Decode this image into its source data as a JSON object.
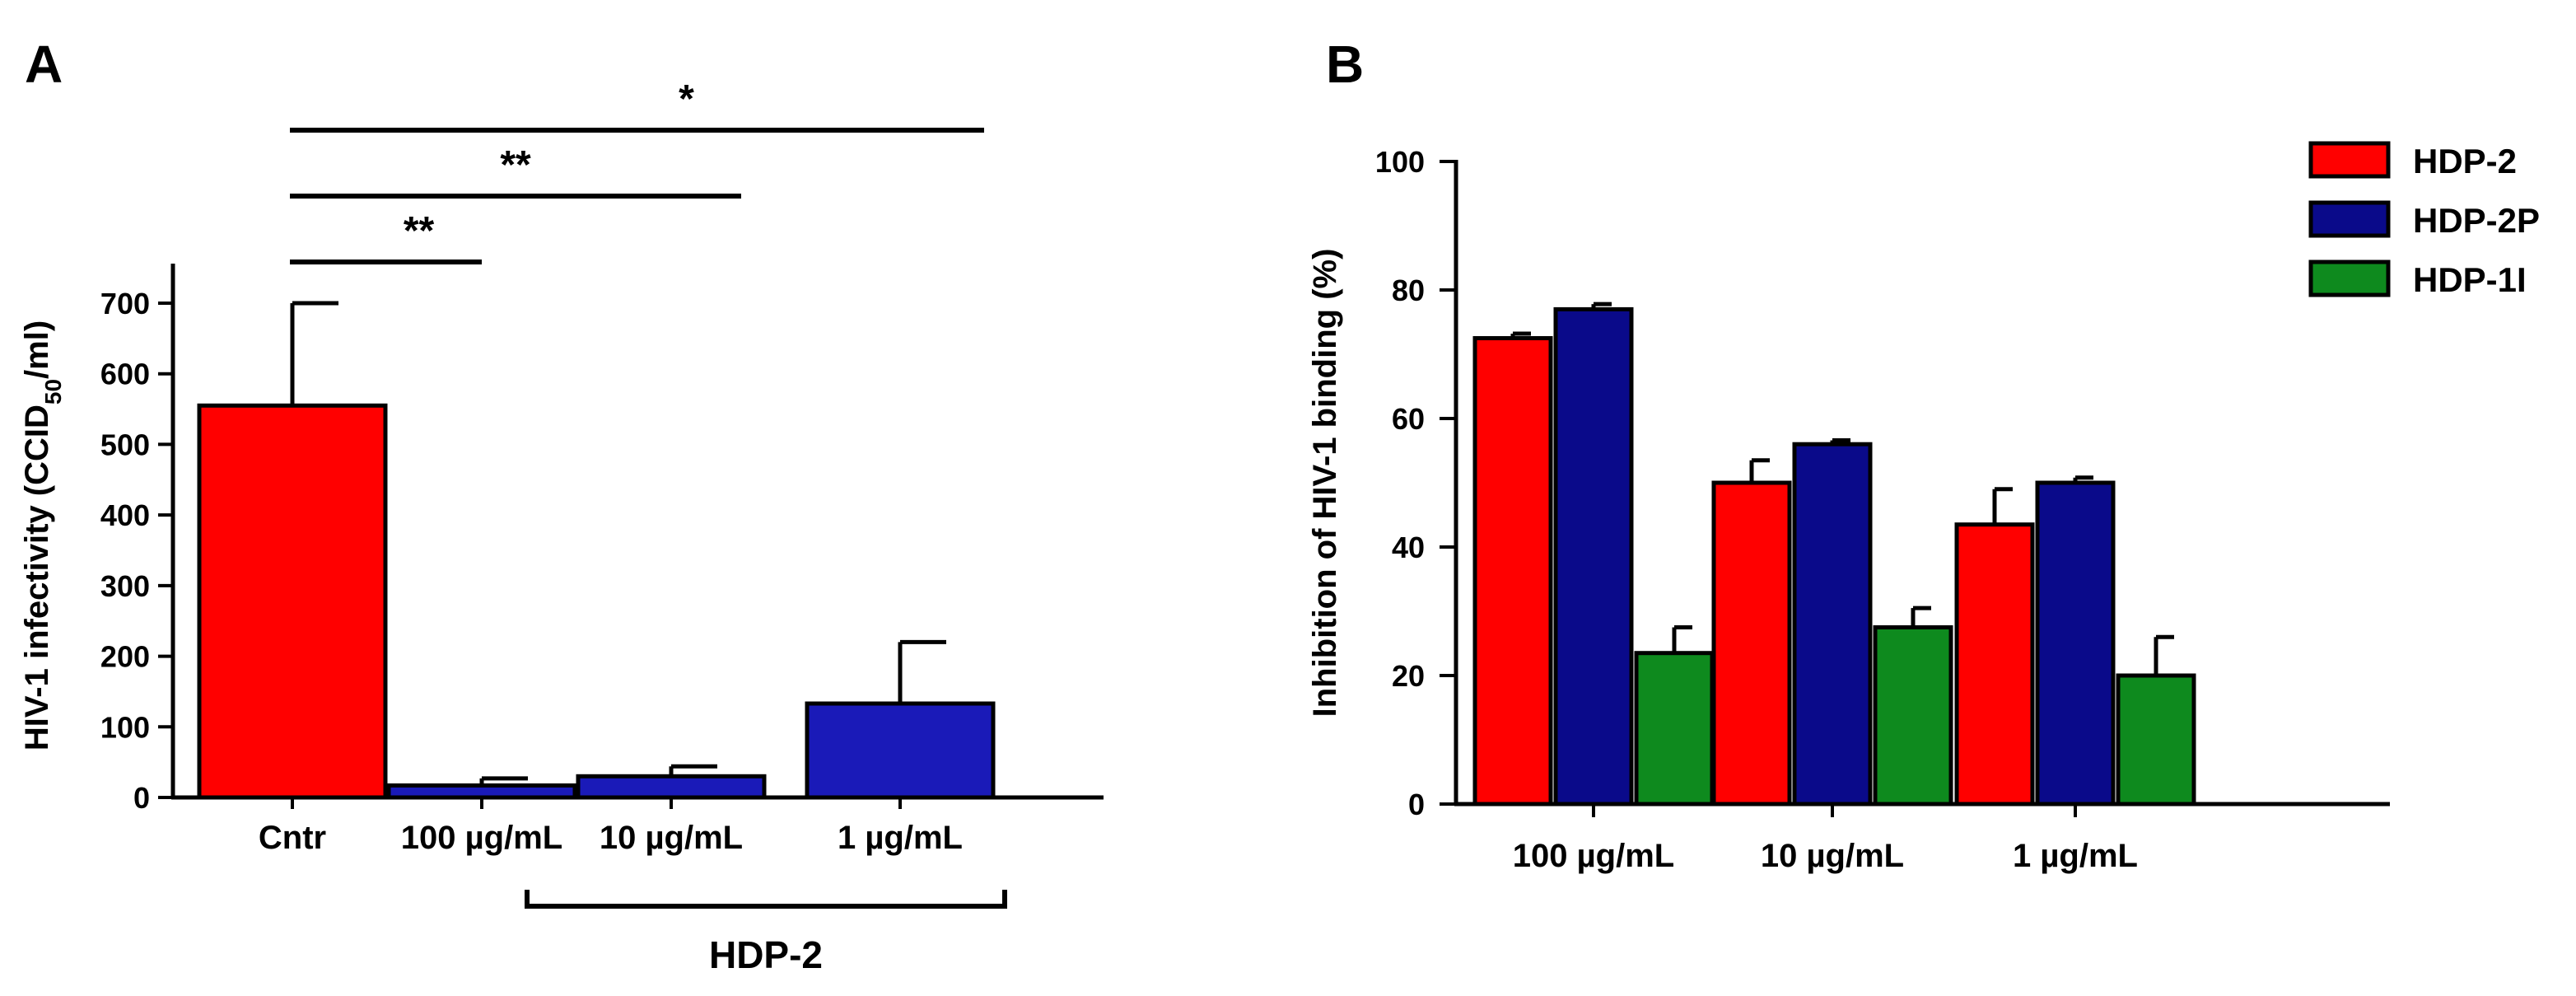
{
  "chart_data": [
    {
      "panel": "A",
      "type": "bar",
      "ylabel": "HIV-1 infectivity (CCID50/ml)",
      "ylabel_main": "HIV-1 infectivity (CCID",
      "ylabel_sub": "50",
      "ylabel_end": "/ml)",
      "ylim": [
        0,
        750
      ],
      "yticks": [
        0,
        100,
        200,
        300,
        400,
        500,
        600,
        700
      ],
      "categories": [
        "Cntr",
        "100 µg/mL",
        "10 µg/mL",
        "1 µg/mL"
      ],
      "values": [
        555,
        17,
        30,
        133
      ],
      "errors": [
        145,
        10,
        14,
        87
      ],
      "colors": [
        "#ff0000",
        "#1a1ab8",
        "#1a1ab8",
        "#1a1ab8"
      ],
      "group_label": "HDP-2",
      "significance": [
        {
          "from": "Cntr",
          "to": "100 µg/mL",
          "label": "**"
        },
        {
          "from": "Cntr",
          "to": "10 µg/mL",
          "label": "**"
        },
        {
          "from": "Cntr",
          "to": "1 µg/mL",
          "label": "*"
        }
      ]
    },
    {
      "panel": "B",
      "type": "bar",
      "ylabel": "Inhibition of HIV-1 binding (%)",
      "ylim": [
        0,
        100
      ],
      "yticks": [
        0,
        20,
        40,
        60,
        80,
        100
      ],
      "categories": [
        "100 µg/mL",
        "10 µg/mL",
        "1 µg/mL"
      ],
      "series": [
        {
          "name": "HDP-2",
          "color": "#ff0000",
          "values": [
            72.5,
            50,
            43.5
          ],
          "errors": [
            0.7,
            3.5,
            5.5
          ]
        },
        {
          "name": "HDP-2P",
          "color": "#0a0a8a",
          "values": [
            77,
            56,
            50
          ],
          "errors": [
            0.8,
            0.6,
            0.8
          ]
        },
        {
          "name": "HDP-1I",
          "color": "#0e8a1e",
          "values": [
            23.5,
            27.5,
            20
          ],
          "errors": [
            4,
            3,
            6
          ]
        }
      ]
    }
  ]
}
